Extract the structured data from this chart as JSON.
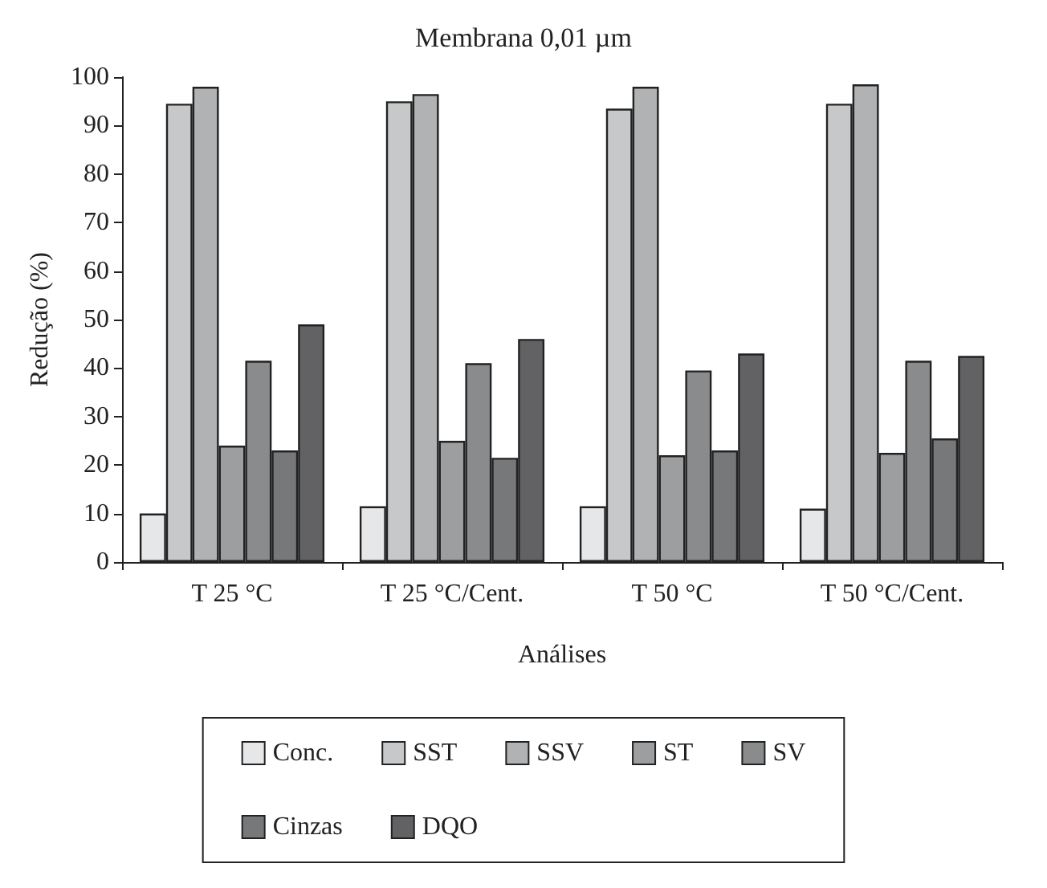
{
  "chart_data": {
    "type": "bar",
    "title": "Membrana 0,01 µm",
    "xlabel": "Análises",
    "ylabel": "Redução (%)",
    "categories": [
      "T 25 °C",
      "T 25 °C/Cent.",
      "T 50 °C",
      "T 50 °C/Cent."
    ],
    "series": [
      {
        "name": "Conc.",
        "color": "#e6e7e8",
        "values": [
          10,
          11.5,
          11.5,
          11
        ]
      },
      {
        "name": "SST",
        "color": "#c7c8ca",
        "values": [
          94.5,
          95,
          93.5,
          94.5
        ]
      },
      {
        "name": "SSV",
        "color": "#b1b2b4",
        "values": [
          98,
          96.5,
          98,
          98.5
        ]
      },
      {
        "name": "ST",
        "color": "#9d9ea0",
        "values": [
          24,
          25,
          22,
          22.5
        ]
      },
      {
        "name": "SV",
        "color": "#8a8b8d",
        "values": [
          41.5,
          41,
          39.5,
          41.5
        ]
      },
      {
        "name": "Cinzas",
        "color": "#77787a",
        "values": [
          23,
          21.5,
          23,
          25.5
        ]
      },
      {
        "name": "DQO",
        "color": "#626264",
        "values": [
          49,
          46,
          43,
          42.5
        ]
      }
    ],
    "ylim": [
      0,
      100
    ],
    "yticks": [
      0,
      10,
      20,
      30,
      40,
      50,
      60,
      70,
      80,
      90,
      100
    ],
    "grid": false,
    "legend": "bottom"
  }
}
